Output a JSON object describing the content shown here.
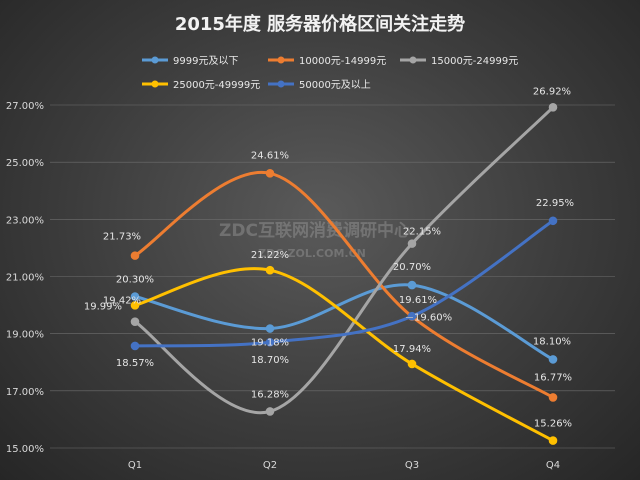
{
  "chart_data": {
    "type": "line",
    "title": "2015年度 服务器价格区间关注走势",
    "categories": [
      "Q1",
      "Q2",
      "Q3",
      "Q4"
    ],
    "ylim": [
      15,
      27
    ],
    "yticks": [
      15,
      17,
      19,
      21,
      23,
      25,
      27
    ],
    "ytick_labels": [
      "15.00%",
      "17.00%",
      "19.00%",
      "21.00%",
      "23.00%",
      "25.00%",
      "27.00%"
    ],
    "grid": true,
    "smooth": true,
    "legend_position": "top",
    "series": [
      {
        "name": "9999元及以下",
        "color": "#5b9bd5",
        "values": [
          20.3,
          19.18,
          20.7,
          18.1
        ],
        "labels": [
          "20.30%",
          "19.18%",
          "20.70%",
          "18.10%"
        ]
      },
      {
        "name": "10000元-14999元",
        "color": "#ed7d31",
        "values": [
          21.73,
          24.61,
          19.6,
          16.77
        ],
        "labels": [
          "21.73%",
          "24.61%",
          "19.60%",
          "16.77%"
        ]
      },
      {
        "name": "15000元-24999元",
        "color": "#a5a5a5",
        "values": [
          19.42,
          16.28,
          22.15,
          26.92
        ],
        "labels": [
          "19.42%",
          "16.28%",
          "22.15%",
          "26.92%"
        ]
      },
      {
        "name": "25000元-49999元",
        "color": "#ffc000",
        "values": [
          19.99,
          21.22,
          17.94,
          15.26
        ],
        "labels": [
          "19.99%",
          "21.22%",
          "17.94%",
          "15.26%"
        ]
      },
      {
        "name": "50000元及以上",
        "color": "#4472c4",
        "values": [
          18.57,
          18.7,
          19.61,
          22.95
        ],
        "labels": [
          "18.57%",
          "18.70%",
          "19.61%",
          "22.95%"
        ]
      }
    ]
  },
  "watermark": {
    "line1": "ZDC互联网消费调研中心",
    "line2": "ZDC.ZOL.COM.CN"
  }
}
